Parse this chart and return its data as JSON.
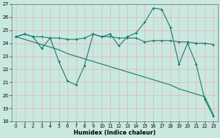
{
  "xlabel": "Humidex (Indice chaleur)",
  "bg_color": "#c8e8e0",
  "line_color": "#1a7a6e",
  "grid_color": "#e8b8b8",
  "xlim": [
    -0.5,
    23.5
  ],
  "ylim": [
    18,
    27
  ],
  "yticks": [
    18,
    19,
    20,
    21,
    22,
    23,
    24,
    25,
    26,
    27
  ],
  "xticks": [
    0,
    1,
    2,
    3,
    4,
    5,
    6,
    7,
    8,
    9,
    10,
    11,
    12,
    13,
    14,
    15,
    16,
    17,
    18,
    19,
    20,
    21,
    22,
    23
  ],
  "line1_x": [
    0,
    1,
    2,
    3,
    4,
    5,
    6,
    7,
    8,
    9,
    10,
    11,
    12,
    13,
    14,
    15,
    16,
    17,
    18,
    19,
    20,
    21,
    22,
    23
  ],
  "line1_y": [
    24.5,
    24.7,
    24.5,
    24.5,
    24.4,
    24.4,
    24.3,
    24.3,
    24.4,
    24.7,
    24.5,
    24.5,
    24.4,
    24.4,
    24.4,
    24.1,
    24.2,
    24.2,
    24.2,
    24.1,
    24.1,
    24.0,
    24.0,
    23.9
  ],
  "line2_x": [
    0,
    1,
    2,
    3,
    4,
    5,
    6,
    7,
    8,
    9,
    10,
    11,
    12,
    13,
    14,
    15,
    16,
    17,
    18,
    19,
    20,
    21,
    22,
    23
  ],
  "line2_y": [
    24.5,
    24.7,
    24.5,
    23.6,
    24.4,
    22.6,
    21.1,
    20.8,
    22.3,
    24.7,
    24.5,
    24.7,
    23.8,
    24.5,
    24.8,
    25.6,
    26.7,
    26.6,
    25.2,
    22.4,
    24.0,
    22.4,
    19.7,
    18.4
  ],
  "line3_x": [
    0,
    1,
    2,
    3,
    4,
    5,
    6,
    7,
    8,
    9,
    10,
    11,
    12,
    13,
    14,
    15,
    16,
    17,
    18,
    19,
    20,
    21,
    22,
    23
  ],
  "line3_y": [
    24.5,
    24.3,
    24.1,
    23.9,
    23.7,
    23.5,
    23.2,
    23.0,
    22.8,
    22.6,
    22.4,
    22.2,
    22.0,
    21.8,
    21.6,
    21.4,
    21.2,
    21.0,
    20.8,
    20.5,
    20.3,
    20.1,
    19.9,
    18.5
  ]
}
